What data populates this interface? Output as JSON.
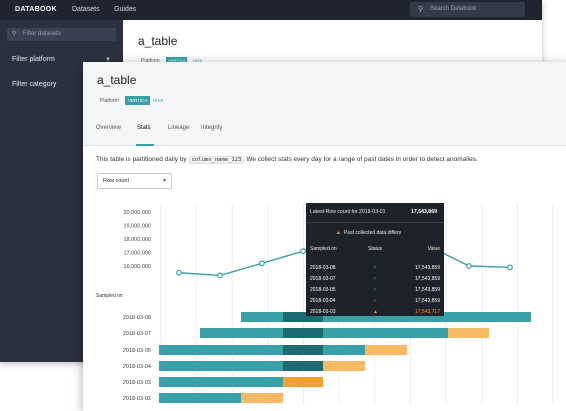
{
  "app": {
    "logo": "DATABOOK",
    "nav": [
      "Datasets",
      "Guides"
    ],
    "search_placeholder": "Search Databook"
  },
  "sidebar": {
    "filter_placeholder": "Filter datasets",
    "items": [
      "Filter platform",
      "Filter category"
    ]
  },
  "background_page": {
    "title": "a_table",
    "platform_label": "Platform",
    "tags": [
      "VERTICA",
      "HIVE"
    ]
  },
  "page": {
    "title": "a_table",
    "platform_label": "Platform",
    "tags": [
      "VERTICA",
      "HIVE"
    ],
    "tabs": [
      "Overview",
      "Stats",
      "Lineage",
      "Integrity"
    ],
    "active_tab": "Stats",
    "description_before": "This table is partitioned daily by",
    "description_code": "column_name_123",
    "description_after": "We collect stats every day for a range of past dates in order to detect anomalies.",
    "metric_select": "Row count",
    "sampled_on_label": "Sampled on"
  },
  "tooltip": {
    "title": "Latest Row count for 2018-03-01",
    "title_value": "17,543,869",
    "warning": "Past collected data differs",
    "columns": [
      "Sampled on",
      "Status",
      "Value"
    ],
    "rows": [
      {
        "date": "2018-03-08",
        "status": "ok",
        "value": "17,543,859"
      },
      {
        "date": "2018-03-07",
        "status": "ok",
        "value": "17,543,859"
      },
      {
        "date": "2018-03-05",
        "status": "ok",
        "value": "17,543,859"
      },
      {
        "date": "2018-03-04",
        "status": "ok",
        "value": "17,543,859"
      },
      {
        "date": "2018-03-03",
        "status": "warn",
        "value": "17,543,717"
      }
    ]
  },
  "colors": {
    "teal": "#3aa0a8",
    "teal_dark": "#1d6b72",
    "orange": "#f5a030",
    "orange_light": "#f7b964"
  },
  "chart_data": {
    "type": "line",
    "y_ticks": [
      "20,000,000",
      "19,000,000",
      "18,000,000",
      "17,000,000",
      "16,000,000"
    ],
    "ylim": [
      16000000,
      20000000
    ],
    "values": [
      15500000,
      15300000,
      16200000,
      17100000,
      17543869,
      17543869,
      17543869,
      16000000,
      15900000
    ],
    "gantt_rows": [
      "2018-03-08",
      "2018-03-07",
      "2018-03-05",
      "2018-03-04",
      "2018-03-03",
      "2018-03-02"
    ]
  }
}
